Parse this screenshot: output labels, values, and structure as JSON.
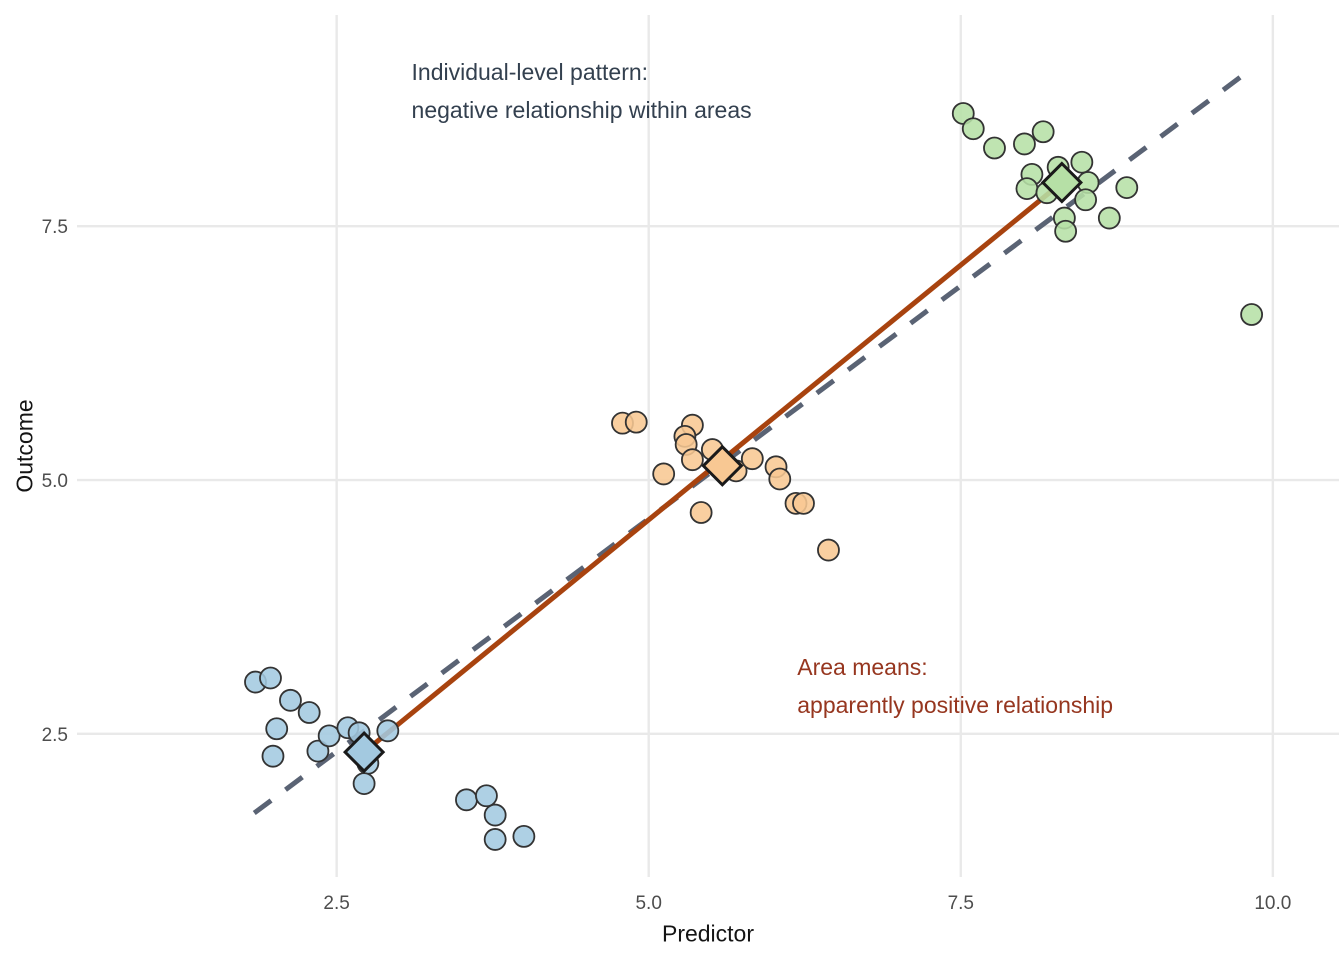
{
  "chart_data": {
    "type": "scatter",
    "title": "",
    "xlabel": "Predictor",
    "ylabel": "Outcome",
    "xlim": [
      0.42,
      10.53
    ],
    "ylim": [
      1.09,
      9.58
    ],
    "x_ticks": [
      2.5,
      5.0,
      7.5,
      10.0
    ],
    "x_tick_labels": [
      "2.5",
      "5.0",
      "7.5",
      "10.0"
    ],
    "y_ticks": [
      2.5,
      5.0,
      7.5
    ],
    "y_tick_labels": [
      "2.5",
      "5.0",
      "7.5"
    ],
    "grid": "major-only",
    "legend": "none",
    "colors": {
      "grid": "#e9e9e9",
      "tick_text": "#4d4d4d",
      "point_stroke": "#333333",
      "diamond_stroke": "#1a1a1a",
      "mean_line": "#a8430f",
      "dashed_line": "#5a6374",
      "annotation_navy": "#33404f",
      "annotation_rust": "#96361f"
    },
    "series": [
      {
        "name": "area-1-blue",
        "color": "#a3c9e0",
        "points": [
          [
            1.85,
            3.01
          ],
          [
            1.97,
            3.05
          ],
          [
            2.13,
            2.83
          ],
          [
            2.28,
            2.71
          ],
          [
            2.02,
            2.55
          ],
          [
            1.99,
            2.28
          ],
          [
            2.35,
            2.33
          ],
          [
            2.44,
            2.48
          ],
          [
            2.59,
            2.56
          ],
          [
            2.68,
            2.51
          ],
          [
            2.91,
            2.53
          ],
          [
            2.75,
            2.21
          ],
          [
            2.72,
            2.01
          ],
          [
            3.54,
            1.85
          ],
          [
            3.7,
            1.89
          ],
          [
            3.77,
            1.7
          ],
          [
            3.77,
            1.46
          ],
          [
            4.0,
            1.49
          ]
        ]
      },
      {
        "name": "area-2-orange",
        "color": "#f8c893",
        "points": [
          [
            4.79,
            5.56
          ],
          [
            4.9,
            5.57
          ],
          [
            5.35,
            5.54
          ],
          [
            5.29,
            5.43
          ],
          [
            5.3,
            5.35
          ],
          [
            5.35,
            5.2
          ],
          [
            5.12,
            5.06
          ],
          [
            5.51,
            5.3
          ],
          [
            5.7,
            5.09
          ],
          [
            5.83,
            5.21
          ],
          [
            6.02,
            5.13
          ],
          [
            6.05,
            5.01
          ],
          [
            6.18,
            4.77
          ],
          [
            6.24,
            4.77
          ],
          [
            5.42,
            4.68
          ],
          [
            6.44,
            4.31
          ]
        ]
      },
      {
        "name": "area-3-green",
        "color": "#b6e0a6",
        "points": [
          [
            7.52,
            8.61
          ],
          [
            7.6,
            8.46
          ],
          [
            7.77,
            8.27
          ],
          [
            8.01,
            8.31
          ],
          [
            8.16,
            8.43
          ],
          [
            8.07,
            8.01
          ],
          [
            8.03,
            7.87
          ],
          [
            8.28,
            8.08
          ],
          [
            8.47,
            8.13
          ],
          [
            8.52,
            7.93
          ],
          [
            8.5,
            7.76
          ],
          [
            8.19,
            7.83
          ],
          [
            8.33,
            7.58
          ],
          [
            8.34,
            7.45
          ],
          [
            8.69,
            7.58
          ],
          [
            8.83,
            7.88
          ],
          [
            9.83,
            6.63
          ]
        ]
      }
    ],
    "area_means": [
      {
        "name": "mean-area-1",
        "x": 2.72,
        "y": 2.32,
        "color": "#a3c9e0"
      },
      {
        "name": "mean-area-2",
        "x": 5.59,
        "y": 5.14,
        "color": "#f8c893"
      },
      {
        "name": "mean-area-3",
        "x": 8.31,
        "y": 7.93,
        "color": "#b6e0a6"
      }
    ],
    "mean_line": {
      "x1": 2.72,
      "y1": 2.32,
      "x2": 8.31,
      "y2": 7.93
    },
    "dashed_line": {
      "x1": 1.84,
      "y1": 1.72,
      "x2": 9.84,
      "y2": 9.06
    },
    "annotations": [
      {
        "name": "individual-level-annotation",
        "lines": [
          "Individual-level pattern:",
          "negative relationship within areas"
        ],
        "x": 3.1,
        "y": 9.02,
        "color": "#33404f"
      },
      {
        "name": "area-means-annotation",
        "lines": [
          "Area means:",
          "apparently positive relationship"
        ],
        "x": 6.19,
        "y": 3.16,
        "color": "#96361f"
      }
    ]
  }
}
